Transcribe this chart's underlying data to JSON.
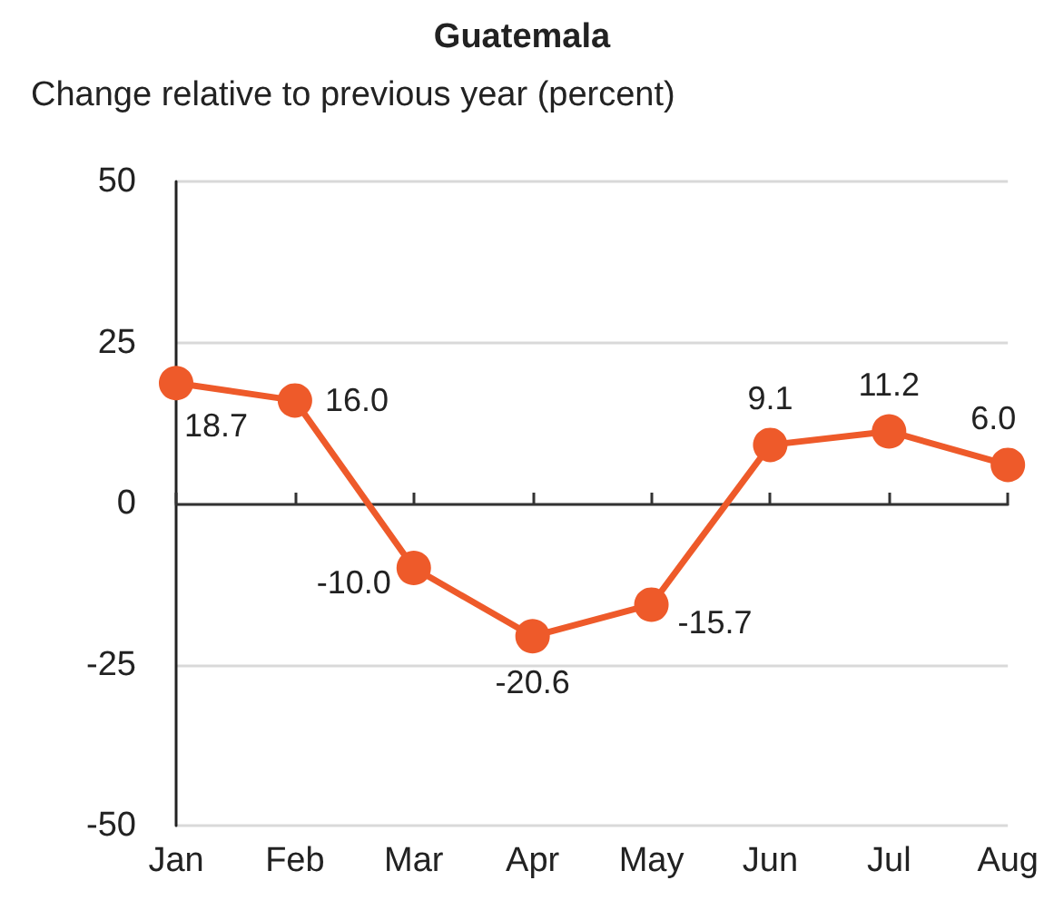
{
  "chart_data": {
    "type": "line",
    "title": "Guatemala",
    "subtitle": "Change relative to previous year (percent)",
    "categories": [
      "Jan",
      "Feb",
      "Mar",
      "Apr",
      "May",
      "Jun",
      "Jul",
      "Aug"
    ],
    "values": [
      18.7,
      16.0,
      -10.0,
      -20.6,
      -15.7,
      9.1,
      11.2,
      6.0
    ],
    "value_labels": [
      "18.7",
      "16.0",
      "-10.0",
      "-20.6",
      "-15.7",
      "9.1",
      "11.2",
      "6.0"
    ],
    "color": "#ee5a2a",
    "ylim": [
      -50,
      50
    ],
    "yticks": [
      -50,
      -25,
      0,
      25,
      50
    ],
    "grid": "y",
    "marker": "circle",
    "line_style": "solid"
  }
}
